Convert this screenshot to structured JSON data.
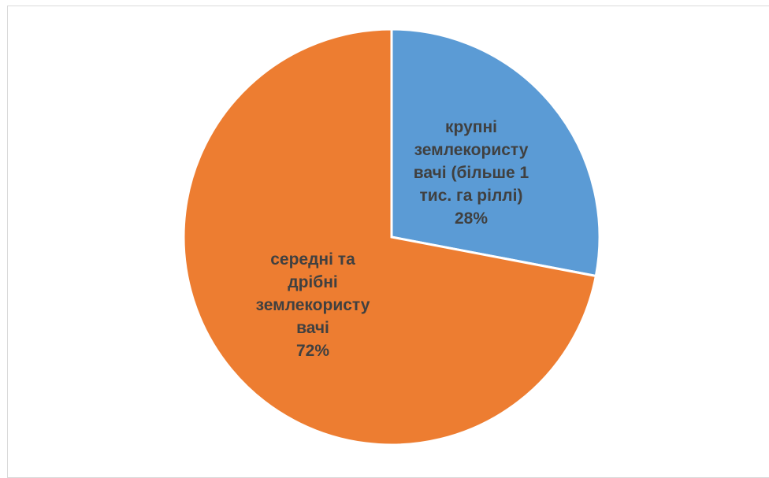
{
  "chart_data": {
    "type": "pie",
    "title": "",
    "categories": [
      "крупні землекористувачі (більше 1 тис. га ріллі)",
      "середні та дрібні землекористувачі"
    ],
    "values": [
      28,
      72
    ],
    "unit": "%",
    "colors": [
      "#5b9bd5",
      "#ed7d31"
    ],
    "data_labels": [
      {
        "lines": [
          "крупні",
          "землекористу",
          "вачі (більше 1",
          "тис. га ріллі)",
          "28%"
        ]
      },
      {
        "lines": [
          "середні та",
          "дрібні",
          "землекористу",
          "вачі",
          "72%"
        ]
      }
    ],
    "legend": "none",
    "start_angle": "12 o'clock",
    "direction": "clockwise"
  }
}
